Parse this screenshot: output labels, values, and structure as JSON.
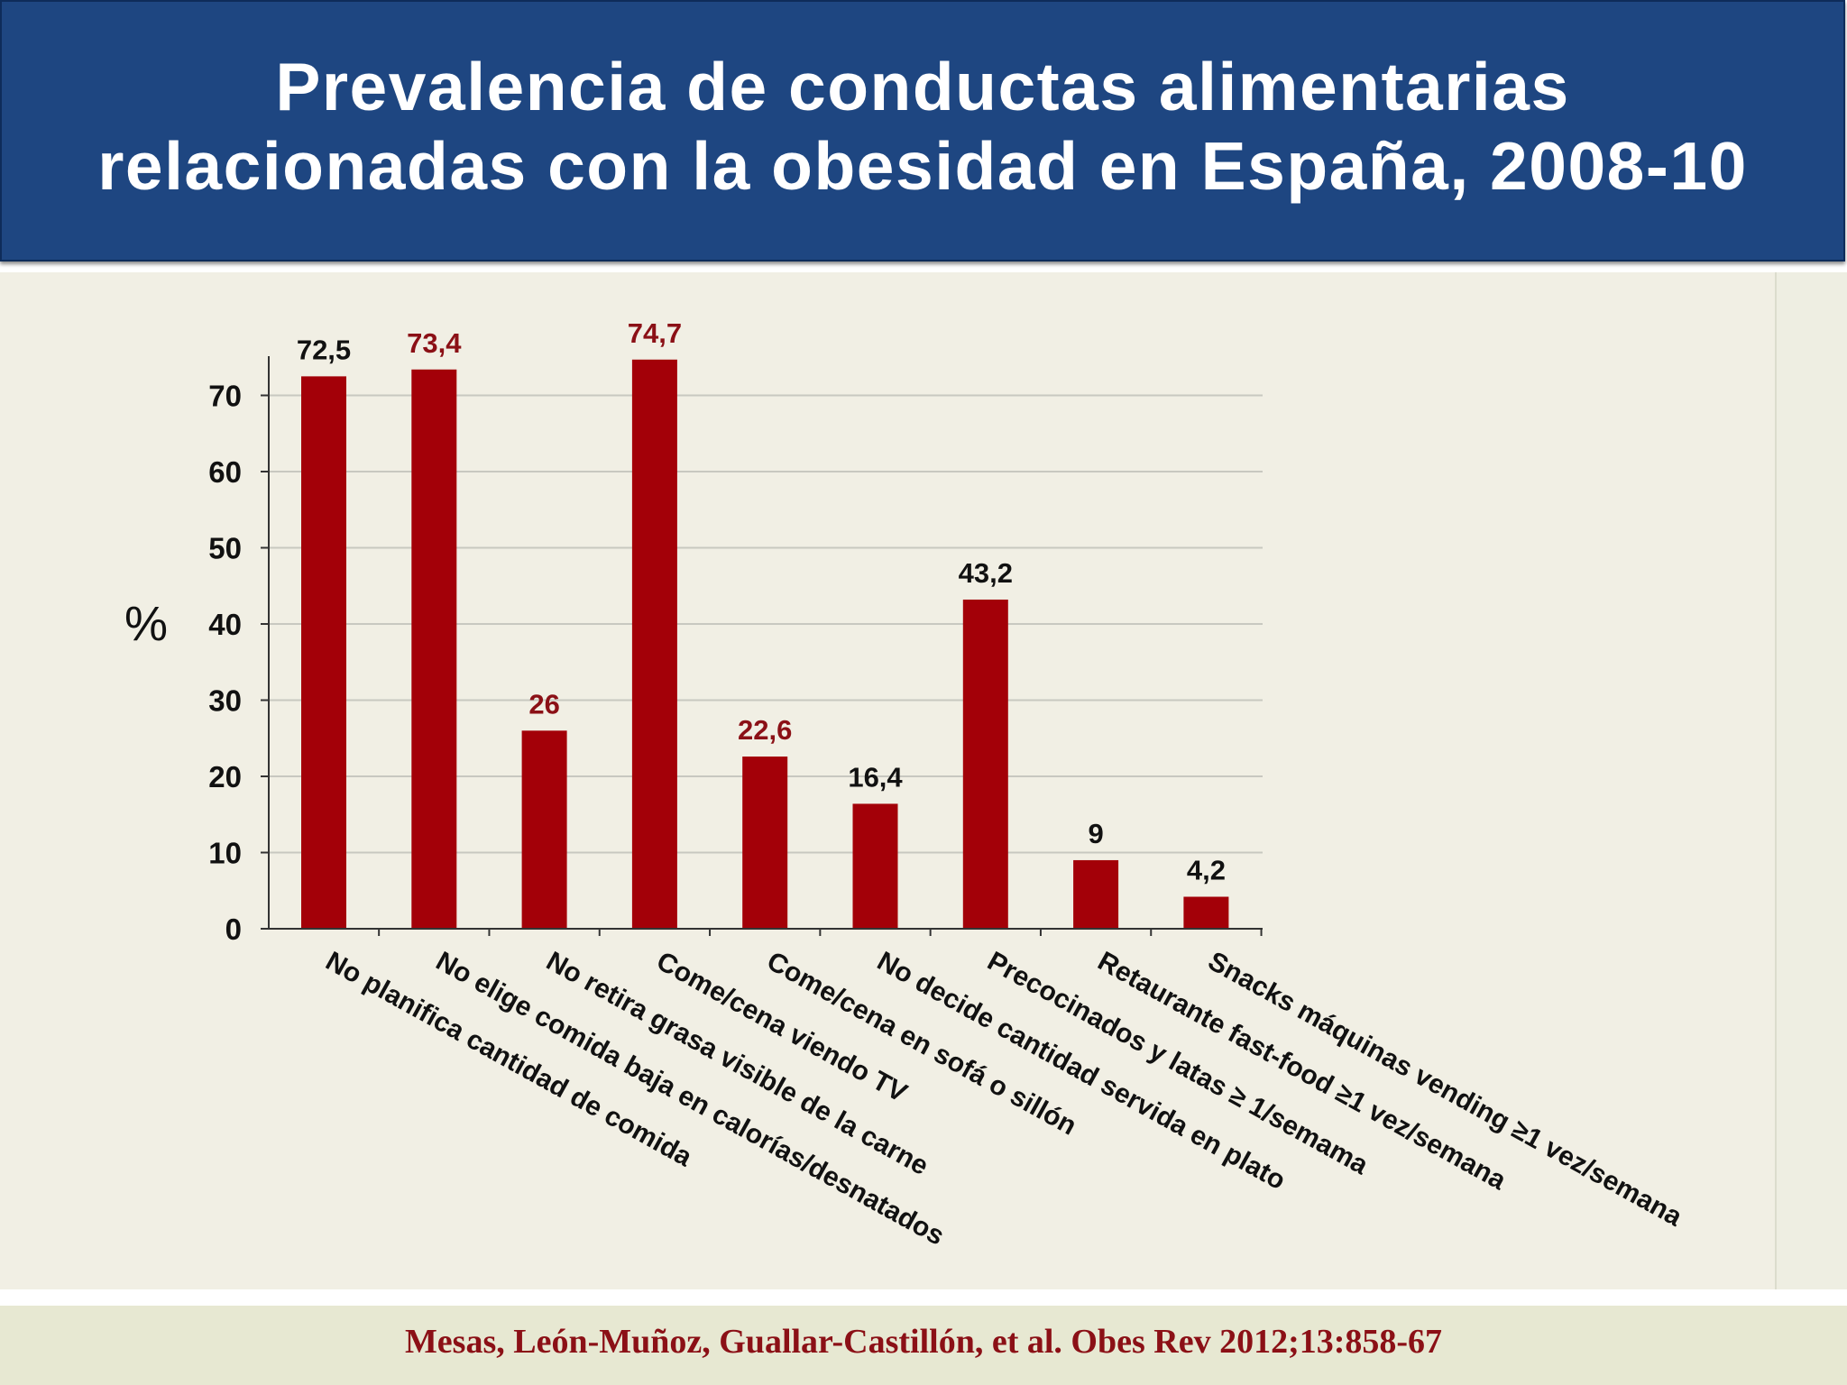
{
  "header": {
    "title_line1": "Prevalencia de conductas alimentarias",
    "title_line2": "relacionadas con la obesidad en España, 2008-10"
  },
  "footer": {
    "citation": "Mesas, León-Muñoz, Guallar-Castillón, et al. Obes Rev 2012;13:858-67"
  },
  "colors": {
    "header_bg": "#1e4681",
    "bar": "#a30008",
    "highlight_label": "#8b1016",
    "normal_label": "#111111"
  },
  "chart_data": {
    "type": "bar",
    "title": "Prevalencia de conductas alimentarias relacionadas con la obesidad en España, 2008-10",
    "xlabel": "",
    "ylabel": "%",
    "ylim": [
      0,
      70
    ],
    "yticks": [
      0,
      10,
      20,
      30,
      40,
      50,
      60,
      70
    ],
    "grid": true,
    "categories": [
      "No planifica cantidad de comida",
      "No elige comida baja en calorías/desnatados",
      "No retira grasa visible de la carne",
      "Come/cena viendo TV",
      "Come/cena en sofá o sillón",
      "No decide cantidad servida en plato",
      "Precocinados y latas ≥ 1/semama",
      "Retaurante fast-food ≥1 vez/semana",
      "Snacks máquinas vending ≥1 vez/semana"
    ],
    "values": [
      72.5,
      73.4,
      26,
      74.7,
      22.6,
      16.4,
      43.2,
      9,
      4.2
    ],
    "value_labels": [
      "72,5",
      "73,4",
      "26",
      "74,7",
      "22,6",
      "16,4",
      "43,2",
      "9",
      "4,2"
    ],
    "highlighted": [
      false,
      true,
      true,
      true,
      true,
      false,
      false,
      false,
      false
    ]
  }
}
